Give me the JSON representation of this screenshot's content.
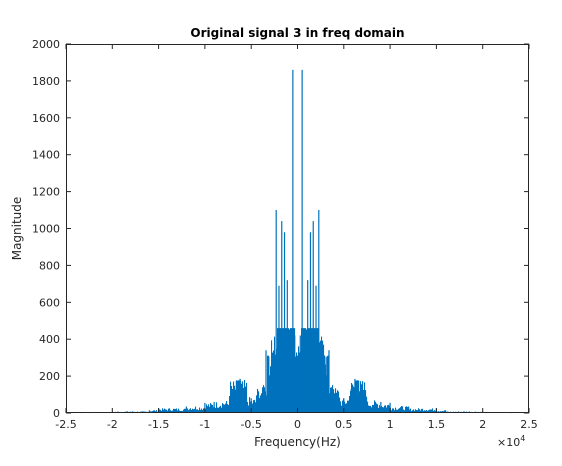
{
  "chart_data": {
    "type": "bar",
    "title": "Original signal 3 in freq domain",
    "xlabel": "Frequency(Hz)",
    "ylabel": "Magnitude",
    "x_exponent_label": "×10",
    "x_exponent_power": "4",
    "xlim": [
      -25000,
      25000
    ],
    "ylim": [
      0,
      2000
    ],
    "x_ticks": [
      -25000,
      -20000,
      -15000,
      -10000,
      -5000,
      0,
      5000,
      10000,
      15000,
      20000,
      25000
    ],
    "x_tick_labels": [
      "-2.5",
      "-2",
      "-1.5",
      "-1",
      "-0.5",
      "0",
      "0.5",
      "1",
      "1.5",
      "2",
      "2.5"
    ],
    "y_ticks": [
      0,
      200,
      400,
      600,
      800,
      1000,
      1200,
      1400,
      1600,
      1800,
      2000
    ],
    "y_tick_labels": [
      "0",
      "200",
      "400",
      "600",
      "800",
      "1000",
      "1200",
      "1400",
      "1600",
      "1800",
      "2000"
    ],
    "grid": false,
    "bar_color": "#0072BD",
    "peaks": [
      {
        "x": -24000,
        "y": 5
      },
      {
        "x": -20000,
        "y": 8
      },
      {
        "x": -16000,
        "y": 15
      },
      {
        "x": -15000,
        "y": 25
      },
      {
        "x": -12000,
        "y": 35
      },
      {
        "x": -10000,
        "y": 55
      },
      {
        "x": -9000,
        "y": 60
      },
      {
        "x": -7000,
        "y": 110
      },
      {
        "x": -6600,
        "y": 175
      },
      {
        "x": -6200,
        "y": 185
      },
      {
        "x": -5800,
        "y": 130
      },
      {
        "x": -5000,
        "y": 80
      },
      {
        "x": -4000,
        "y": 95
      },
      {
        "x": -3400,
        "y": 340
      },
      {
        "x": -3100,
        "y": 305
      },
      {
        "x": -2800,
        "y": 200
      },
      {
        "x": -2300,
        "y": 1100
      },
      {
        "x": -2000,
        "y": 690
      },
      {
        "x": -1700,
        "y": 1040
      },
      {
        "x": -1400,
        "y": 980
      },
      {
        "x": -1100,
        "y": 720
      },
      {
        "x": -900,
        "y": 440
      },
      {
        "x": -500,
        "y": 1860
      },
      {
        "x": -300,
        "y": 420
      },
      {
        "x": 0,
        "y": 300
      },
      {
        "x": 300,
        "y": 420
      },
      {
        "x": 500,
        "y": 1860
      },
      {
        "x": 900,
        "y": 440
      },
      {
        "x": 1100,
        "y": 720
      },
      {
        "x": 1400,
        "y": 980
      },
      {
        "x": 1700,
        "y": 1040
      },
      {
        "x": 2000,
        "y": 690
      },
      {
        "x": 2300,
        "y": 1100
      },
      {
        "x": 2800,
        "y": 200
      },
      {
        "x": 3100,
        "y": 305
      },
      {
        "x": 3400,
        "y": 340
      },
      {
        "x": 4000,
        "y": 95
      },
      {
        "x": 5000,
        "y": 80
      },
      {
        "x": 5800,
        "y": 130
      },
      {
        "x": 6200,
        "y": 185
      },
      {
        "x": 6600,
        "y": 175
      },
      {
        "x": 7000,
        "y": 110
      },
      {
        "x": 9000,
        "y": 60
      },
      {
        "x": 10000,
        "y": 55
      },
      {
        "x": 12000,
        "y": 35
      },
      {
        "x": 15000,
        "y": 25
      },
      {
        "x": 16000,
        "y": 15
      },
      {
        "x": 20000,
        "y": 8
      },
      {
        "x": 24000,
        "y": 5
      }
    ]
  }
}
